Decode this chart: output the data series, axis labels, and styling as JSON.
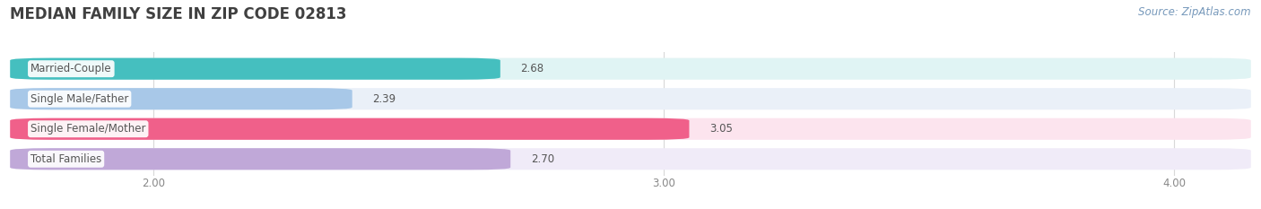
{
  "title": "MEDIAN FAMILY SIZE IN ZIP CODE 02813",
  "source": "Source: ZipAtlas.com",
  "categories": [
    "Married-Couple",
    "Single Male/Father",
    "Single Female/Mother",
    "Total Families"
  ],
  "values": [
    2.68,
    2.39,
    3.05,
    2.7
  ],
  "bar_colors": [
    "#45bfbf",
    "#a8c8e8",
    "#f0608a",
    "#c0a8d8"
  ],
  "bar_bg_colors": [
    "#e0f4f4",
    "#eaf0f8",
    "#fce4ee",
    "#f0ebf8"
  ],
  "xlim_left": 1.72,
  "xlim_right": 4.15,
  "xticks": [
    2.0,
    3.0,
    4.0
  ],
  "xtick_labels": [
    "2.00",
    "3.00",
    "4.00"
  ],
  "title_fontsize": 12,
  "label_fontsize": 8.5,
  "value_fontsize": 8.5,
  "source_fontsize": 8.5,
  "bar_height": 0.72,
  "background_color": "#ffffff",
  "grid_color": "#d8d8d8",
  "text_color": "#555555",
  "title_color": "#404040",
  "tick_color": "#888888"
}
